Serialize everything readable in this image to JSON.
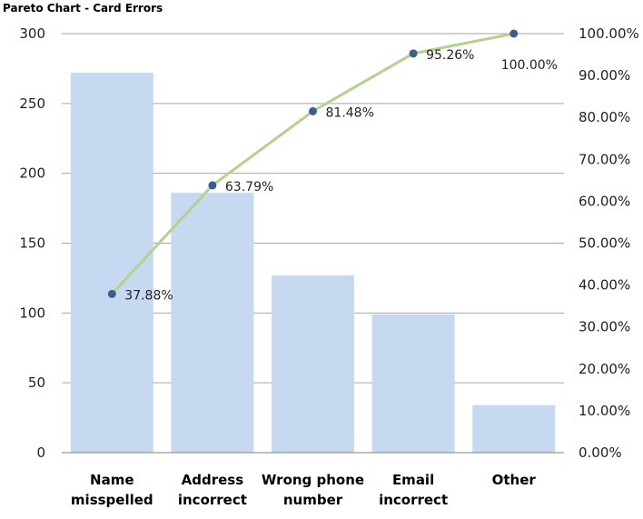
{
  "chart_data": {
    "type": "bar",
    "title": "Pareto Chart - Card Errors",
    "categories": [
      [
        "Name",
        "misspelled"
      ],
      [
        "Address",
        "incorrect"
      ],
      [
        "Wrong phone",
        "number"
      ],
      [
        "Email",
        "incorrect"
      ],
      [
        "Other"
      ]
    ],
    "series": [
      {
        "type": "bar",
        "axis": "left",
        "values": [
          272,
          186,
          127,
          99,
          34
        ]
      },
      {
        "type": "line",
        "axis": "right",
        "values": [
          37.88,
          63.79,
          81.48,
          95.26,
          100.0
        ],
        "labels": [
          "37.88%",
          "63.79%",
          "81.48%",
          "95.26%",
          "100.00%"
        ]
      }
    ],
    "ylim_left": [
      0,
      300
    ],
    "yticks_left": [
      0,
      50,
      100,
      150,
      200,
      250,
      300
    ],
    "ylim_right": [
      0,
      100
    ],
    "yticks_right": [
      "0.00%",
      "10.00%",
      "20.00%",
      "30.00%",
      "40.00%",
      "50.00%",
      "60.00%",
      "70.00%",
      "80.00%",
      "90.00%",
      "100.00%"
    ],
    "grid": true,
    "colors": {
      "bar": "#c6d9f1",
      "line": "#b5d18e",
      "marker": "#3a5f8f",
      "grid": "#a6a6a6",
      "axis": "#808080"
    }
  }
}
